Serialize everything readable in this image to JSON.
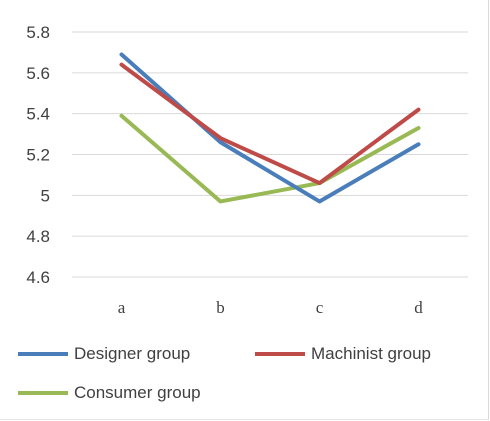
{
  "chart_data": {
    "type": "line",
    "categories": [
      "a",
      "b",
      "c",
      "d"
    ],
    "ylim": [
      4.6,
      5.8
    ],
    "yticks": [
      {
        "value": 4.6,
        "label": "4.6"
      },
      {
        "value": 4.8,
        "label": "4.8"
      },
      {
        "value": 5.0,
        "label": "5"
      },
      {
        "value": 5.2,
        "label": "5.2"
      },
      {
        "value": 5.4,
        "label": "5.4"
      },
      {
        "value": 5.6,
        "label": "5.6"
      },
      {
        "value": 5.8,
        "label": "5.8"
      }
    ],
    "grid": true,
    "legend_position": "bottom",
    "series": [
      {
        "name": "Designer group",
        "color": "#4a7ebb",
        "values": [
          5.69,
          5.26,
          4.97,
          5.25
        ]
      },
      {
        "name": "Machinist group",
        "color": "#be4b48",
        "values": [
          5.64,
          5.28,
          5.06,
          5.42
        ]
      },
      {
        "name": "Consumer group",
        "color": "#98b954",
        "values": [
          5.39,
          4.97,
          5.06,
          5.33
        ]
      }
    ]
  }
}
